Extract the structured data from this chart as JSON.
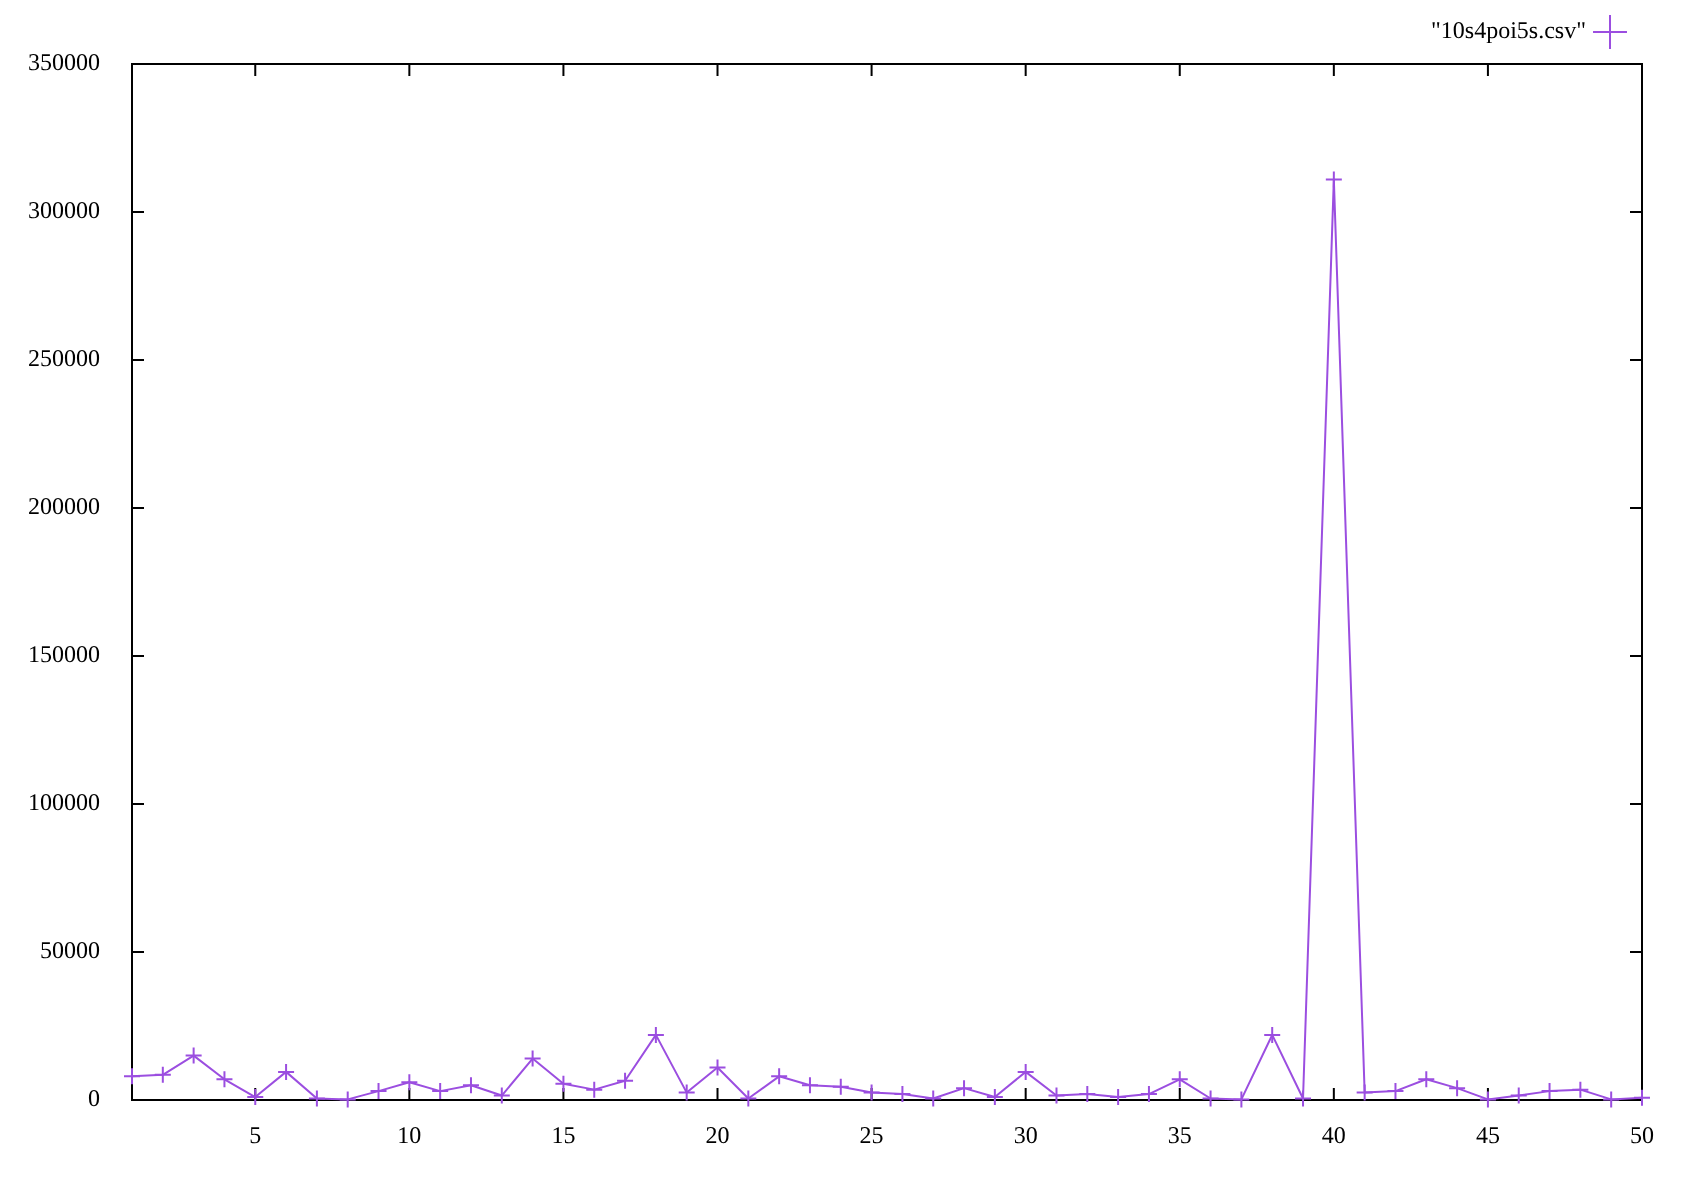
{
  "chart_data": {
    "type": "line",
    "x": [
      1,
      2,
      3,
      4,
      5,
      6,
      7,
      8,
      9,
      10,
      11,
      12,
      13,
      14,
      15,
      16,
      17,
      18,
      19,
      20,
      21,
      22,
      23,
      24,
      25,
      26,
      27,
      28,
      29,
      30,
      31,
      32,
      33,
      34,
      35,
      36,
      37,
      38,
      39,
      40,
      41,
      42,
      43,
      44,
      45,
      46,
      47,
      48,
      49,
      50
    ],
    "series": [
      {
        "name": "\"10s4poi5s.csv\"",
        "color": "#9b4ee0",
        "values": [
          8000,
          8500,
          15000,
          7000,
          1000,
          9500,
          500,
          200,
          3000,
          6000,
          3000,
          5000,
          1500,
          14000,
          5500,
          3500,
          6500,
          22000,
          2500,
          11000,
          500,
          8000,
          5000,
          4500,
          2500,
          2000,
          500,
          4000,
          1000,
          9500,
          1500,
          2000,
          1000,
          2000,
          7000,
          500,
          200,
          22000,
          500,
          311000,
          2500,
          3000,
          7000,
          4000,
          200,
          1500,
          3000,
          3500,
          200,
          800
        ]
      }
    ],
    "xlim": [
      1,
      50
    ],
    "xticks": [
      5,
      10,
      15,
      20,
      25,
      30,
      35,
      40,
      45,
      50
    ],
    "ylim": [
      0,
      350000
    ],
    "yticks": [
      0,
      50000,
      100000,
      150000,
      200000,
      250000,
      300000,
      350000
    ],
    "grid": false,
    "legend": "top right",
    "marker": "cross",
    "line_style": "solid"
  }
}
